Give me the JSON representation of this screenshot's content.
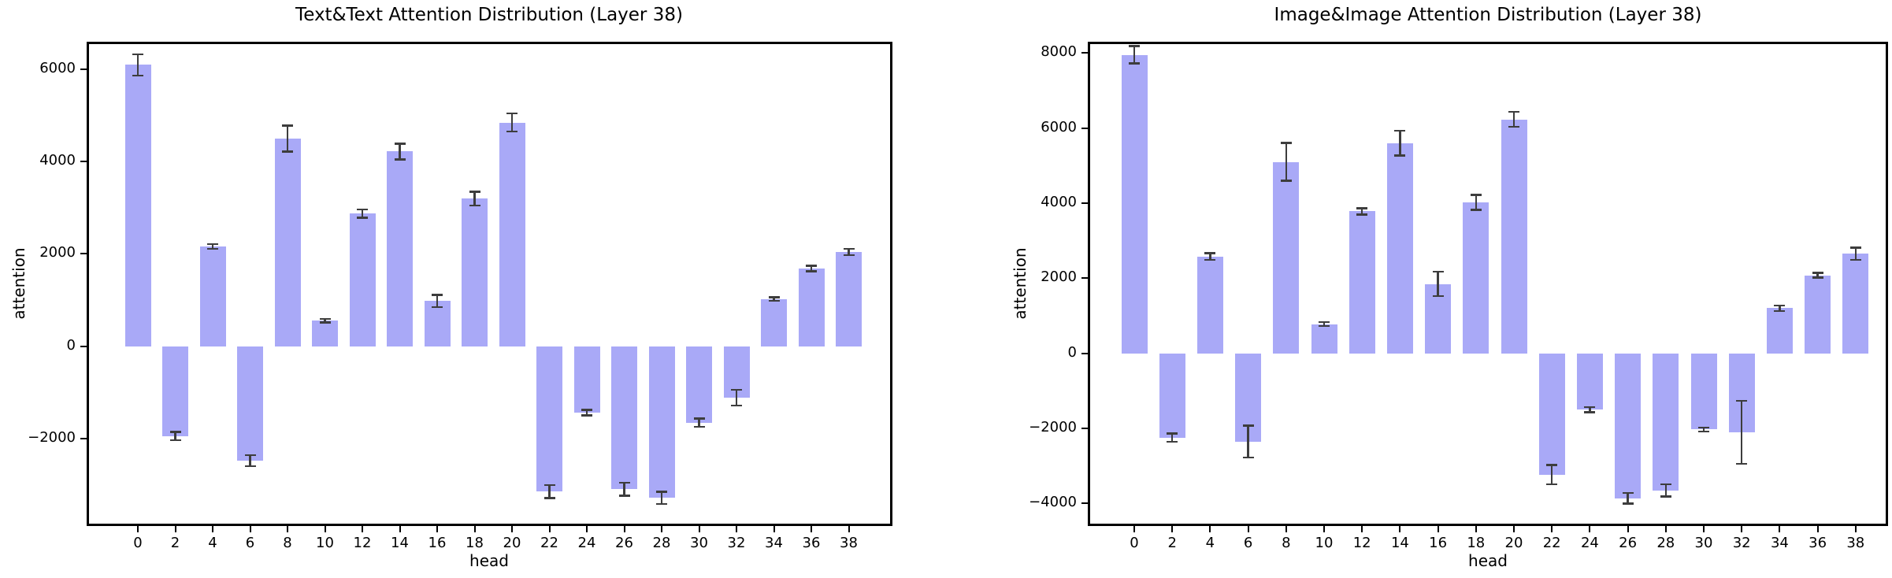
{
  "colors": {
    "bar": "#a9a9f7",
    "error_bar": "#3d3d3d",
    "spine": "#000000",
    "text": "#000000",
    "background": "#ffffff"
  },
  "chart_data": [
    {
      "type": "bar",
      "title": "Text&Text Attention Distribution (Layer 38)",
      "xlabel": "head",
      "ylabel": "attention",
      "categories": [
        "0",
        "2",
        "4",
        "6",
        "8",
        "10",
        "12",
        "14",
        "16",
        "18",
        "20",
        "22",
        "24",
        "26",
        "28",
        "30",
        "32",
        "34",
        "36",
        "38"
      ],
      "values": [
        6100,
        -1950,
        2160,
        -2480,
        4500,
        550,
        2870,
        4220,
        980,
        3200,
        4850,
        -3150,
        -1440,
        -3100,
        -3290,
        -1660,
        -1120,
        1020,
        1680,
        2040
      ],
      "errors": [
        230,
        90,
        50,
        120,
        280,
        40,
        90,
        170,
        130,
        150,
        200,
        140,
        60,
        140,
        130,
        90,
        170,
        40,
        60,
        70
      ],
      "yticks": [
        6000,
        4000,
        2000,
        0,
        -2000
      ],
      "ylim": [
        -3900,
        6600
      ],
      "grid": false,
      "legend": null
    },
    {
      "type": "bar",
      "title": "Image&Image Attention Distribution (Layer 38)",
      "xlabel": "head",
      "ylabel": "attention",
      "categories": [
        "0",
        "2",
        "4",
        "6",
        "8",
        "10",
        "12",
        "14",
        "16",
        "18",
        "20",
        "22",
        "24",
        "26",
        "28",
        "30",
        "32",
        "34",
        "36",
        "38"
      ],
      "values": [
        7950,
        -2250,
        2580,
        -2350,
        5100,
        780,
        3780,
        5600,
        1850,
        4020,
        6230,
        -3230,
        -1500,
        -3860,
        -3650,
        -2030,
        -2100,
        1200,
        2080,
        2650
      ],
      "errors": [
        230,
        110,
        90,
        420,
        500,
        50,
        80,
        330,
        330,
        200,
        200,
        260,
        70,
        140,
        160,
        50,
        840,
        70,
        60,
        160
      ],
      "yticks": [
        8000,
        6000,
        4000,
        2000,
        0,
        -2000,
        -4000
      ],
      "ylim": [
        -4600,
        8300
      ],
      "grid": false,
      "legend": null
    }
  ]
}
